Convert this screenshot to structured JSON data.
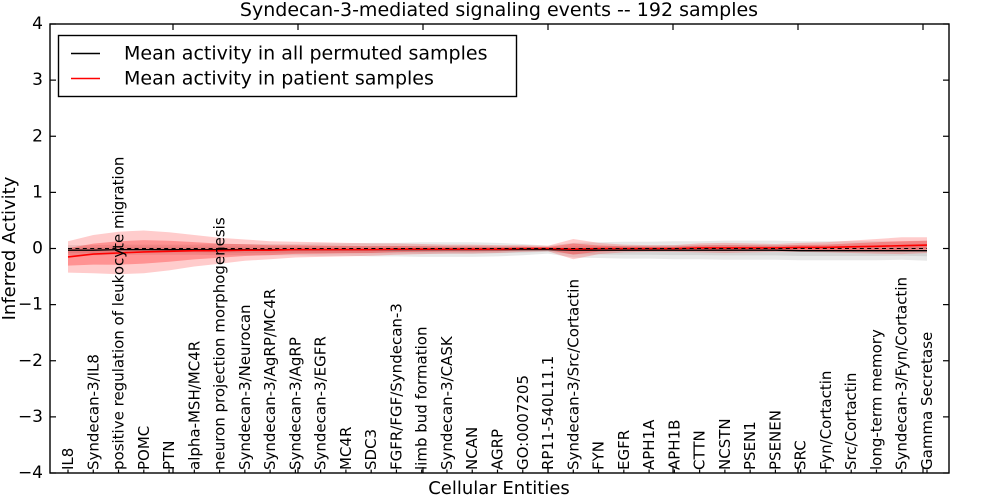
{
  "title": "Syndecan-3-mediated signaling events -- 192 samples",
  "axes": {
    "xlabel": "Cellular Entities",
    "ylabel": "Inferred Activity",
    "ytick_labels": [
      "4",
      "3",
      "2",
      "1",
      "0",
      "−1",
      "−2",
      "−3",
      "−4"
    ],
    "ylim": [
      -4,
      4
    ]
  },
  "legend": {
    "entries": [
      {
        "label": "Mean activity in all permuted samples",
        "color": "#000000"
      },
      {
        "label": "Mean activity in patient samples",
        "color": "#ff0000"
      }
    ],
    "position": "upper left"
  },
  "chart_data": {
    "type": "line",
    "title": "Syndecan-3-mediated signaling events -- 192 samples",
    "xlabel": "Cellular Entities",
    "ylabel": "Inferred Activity",
    "ylim": [
      -4,
      4
    ],
    "yticks": [
      4,
      3,
      2,
      1,
      0,
      -1,
      -2,
      -3,
      -4
    ],
    "grid": false,
    "legend_position": "upper left",
    "zero_reference_line": {
      "y": 0,
      "style": "dashed",
      "color": "#000000"
    },
    "categories": [
      "IL8",
      "Syndecan-3/IL8",
      "positive regulation of leukocyte migration",
      "POMC",
      "PTN",
      "alpha-MSH/MC4R",
      "neuron projection morphogenesis",
      "Syndecan-3/Neurocan",
      "Syndecan-3/AgRP/MC4R",
      "Syndecan-3/AgRP",
      "Syndecan-3/EGFR",
      "MC4R",
      "SDC3",
      "FGFR/FGF/Syndecan-3",
      "limb bud formation",
      "Syndecan-3/CASK",
      "NCAN",
      "AGRP",
      "GO:0007205",
      "RP11-540L11.1",
      "Syndecan-3/Src/Cortactin",
      "FYN",
      "EGFR",
      "APH1A",
      "APH1B",
      "CTTN",
      "NCSTN",
      "PSEN1",
      "PSENEN",
      "SRC",
      "Fyn/Cortactin",
      "Src/Cortactin",
      "long-term memory",
      "Syndecan-3/Fyn/Cortactin",
      "Gamma Secretase"
    ],
    "series": [
      {
        "name": "Mean activity in all permuted samples",
        "color": "#000000",
        "band_color": "#808080",
        "mean": [
          -0.03,
          -0.03,
          -0.02,
          -0.02,
          -0.02,
          -0.02,
          -0.02,
          -0.02,
          -0.02,
          -0.02,
          -0.02,
          -0.02,
          -0.02,
          -0.02,
          -0.02,
          -0.02,
          -0.02,
          -0.02,
          -0.02,
          -0.02,
          -0.03,
          -0.03,
          -0.03,
          -0.03,
          -0.03,
          -0.03,
          -0.03,
          -0.03,
          -0.03,
          -0.04,
          -0.04,
          -0.04,
          -0.04,
          -0.04,
          -0.04
        ],
        "std": [
          0.09,
          0.09,
          0.09,
          0.09,
          0.09,
          0.09,
          0.1,
          0.1,
          0.1,
          0.1,
          0.11,
          0.11,
          0.12,
          0.12,
          0.13,
          0.13,
          0.13,
          0.12,
          0.1,
          0.07,
          0.13,
          0.14,
          0.15,
          0.15,
          0.16,
          0.16,
          0.17,
          0.17,
          0.17,
          0.17,
          0.17,
          0.17,
          0.17,
          0.16,
          0.18
        ]
      },
      {
        "name": "Mean activity in patient samples",
        "color": "#ff0000",
        "band_color": "#ff0000",
        "mean": [
          -0.15,
          -0.1,
          -0.08,
          -0.06,
          -0.05,
          -0.04,
          -0.04,
          -0.03,
          -0.03,
          -0.02,
          -0.02,
          -0.02,
          -0.02,
          -0.01,
          -0.01,
          -0.01,
          -0.01,
          -0.01,
          0.0,
          0.0,
          -0.01,
          0.0,
          0.0,
          0.0,
          0.0,
          0.01,
          0.01,
          0.01,
          0.01,
          0.02,
          0.02,
          0.03,
          0.04,
          0.05,
          0.06
        ],
        "std": [
          0.28,
          0.34,
          0.38,
          0.38,
          0.34,
          0.28,
          0.23,
          0.19,
          0.16,
          0.14,
          0.13,
          0.12,
          0.11,
          0.1,
          0.09,
          0.08,
          0.08,
          0.07,
          0.06,
          0.05,
          0.18,
          0.1,
          0.07,
          0.06,
          0.06,
          0.08,
          0.09,
          0.08,
          0.07,
          0.08,
          0.09,
          0.11,
          0.13,
          0.15,
          0.14
        ]
      }
    ]
  }
}
